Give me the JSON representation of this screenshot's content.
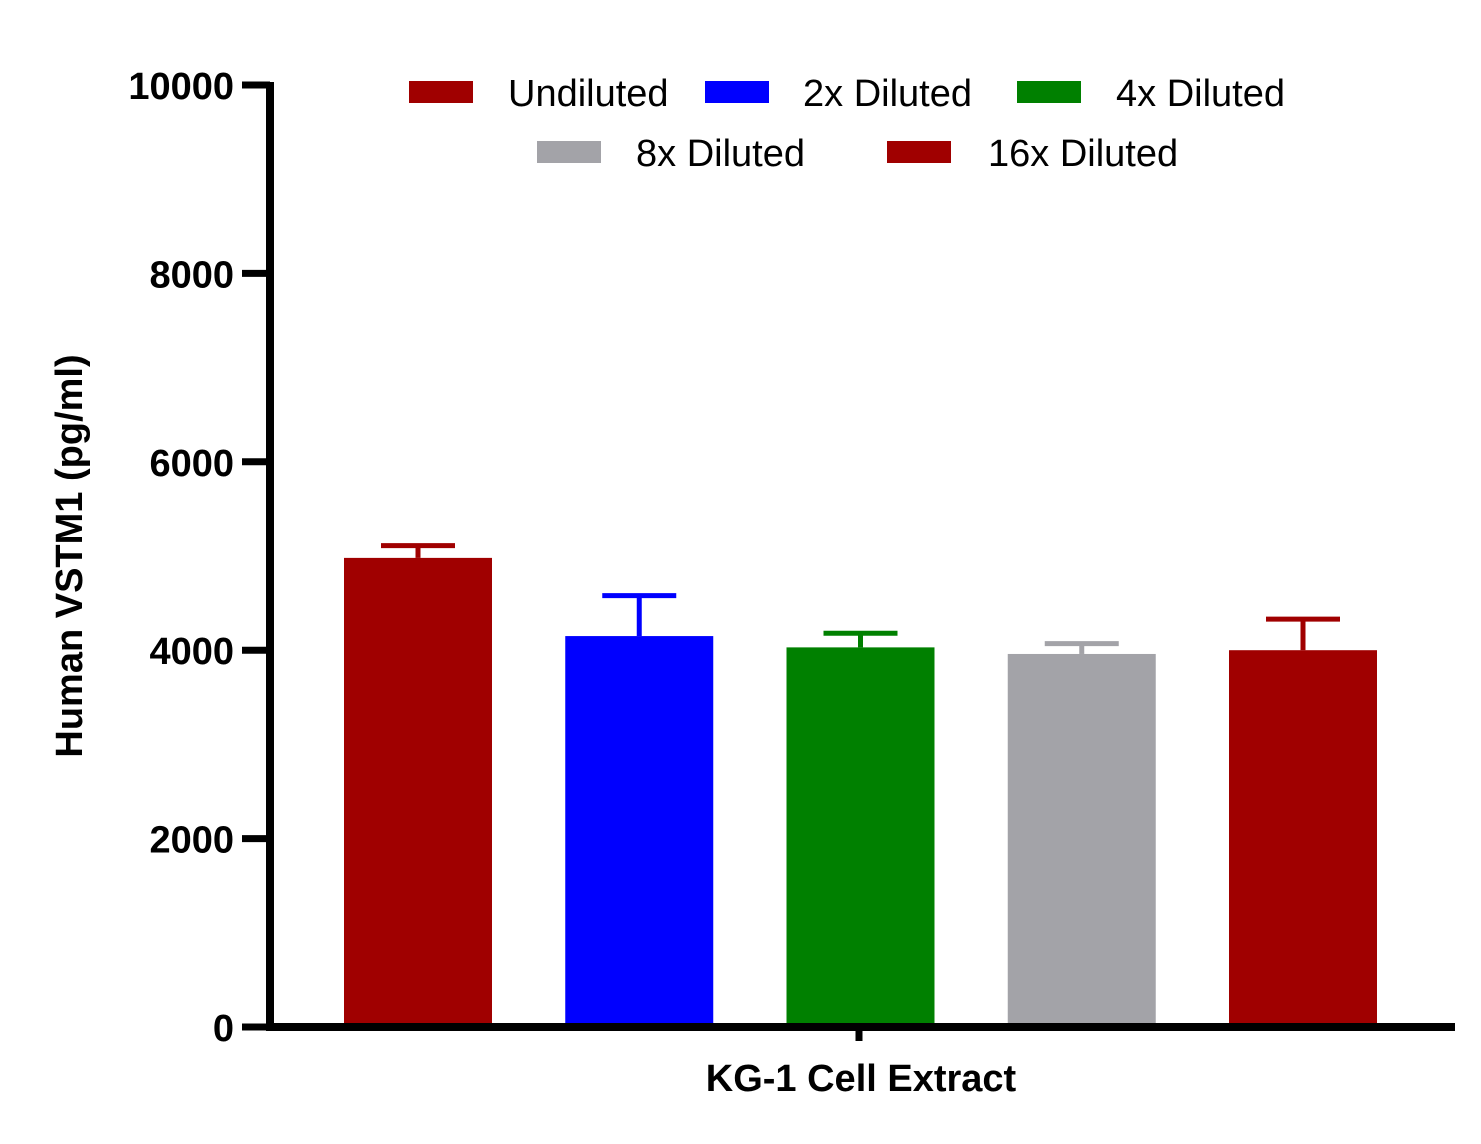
{
  "chart_data": {
    "type": "bar",
    "xlabel": "KG-1 Cell Extract",
    "ylabel": "Human VSTM1 (pg/ml)",
    "ylim": [
      0,
      10000
    ],
    "yticks": [
      "0",
      "2000",
      "4000",
      "6000",
      "8000",
      "10000"
    ],
    "legend_placement": "top",
    "grid": false,
    "series": [
      {
        "name": "Undiluted",
        "value": 4980,
        "error": 130,
        "color": "#a00000"
      },
      {
        "name": "2x Diluted",
        "value": 4150,
        "error": 430,
        "color": "#0000ff"
      },
      {
        "name": "4x Diluted",
        "value": 4030,
        "error": 150,
        "color": "#008000"
      },
      {
        "name": "8x Diluted",
        "value": 3960,
        "error": 110,
        "color": "#a3a3a8"
      },
      {
        "name": "16x Diluted",
        "value": 4000,
        "error": 330,
        "color": "#a00000"
      }
    ]
  }
}
